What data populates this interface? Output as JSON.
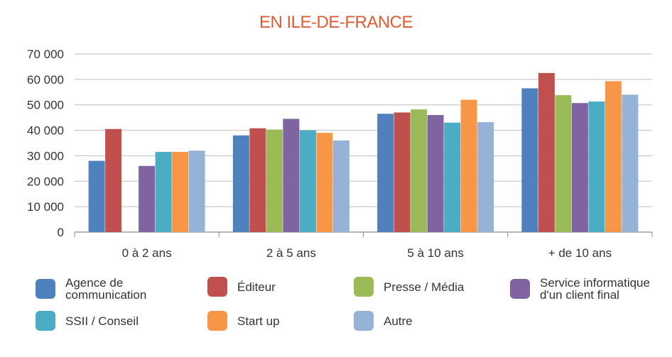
{
  "chart_data": {
    "type": "bar",
    "title": "EN ILE-DE-FRANCE",
    "title_color": "#e05a33",
    "categories": [
      "0 à 2 ans",
      "2 à 5 ans",
      "5 à 10 ans",
      "+ de 10 ans"
    ],
    "ylim": [
      0,
      70000
    ],
    "yticks": [
      0,
      10000,
      20000,
      30000,
      40000,
      50000,
      60000,
      70000
    ],
    "ytick_labels": [
      "0",
      "10 000",
      "20 000",
      "30 000",
      "40 000",
      "50 000",
      "60 000",
      "70 000"
    ],
    "grid": true,
    "legend_position": "bottom",
    "series": [
      {
        "name": "Agence de\ncommunication",
        "color": "#4f81bd",
        "values": [
          28000,
          38000,
          46500,
          56500
        ]
      },
      {
        "name": "Éditeur",
        "color": "#c0504d",
        "values": [
          40500,
          40800,
          47000,
          62500
        ]
      },
      {
        "name": "Presse / Média",
        "color": "#9bbb59",
        "values": [
          null,
          40300,
          48200,
          53800
        ]
      },
      {
        "name": "Service informatique\nd'un client final",
        "color": "#8064a2",
        "values": [
          26000,
          44500,
          46000,
          50700
        ]
      },
      {
        "name": "SSII / Conseil",
        "color": "#4bacc6",
        "values": [
          31500,
          40000,
          43000,
          51300
        ]
      },
      {
        "name": "Start up",
        "color": "#f79646",
        "values": [
          31500,
          39000,
          52000,
          59300
        ]
      },
      {
        "name": "Autre",
        "color": "#95b3d7",
        "values": [
          32000,
          36000,
          43200,
          54000
        ]
      }
    ]
  }
}
